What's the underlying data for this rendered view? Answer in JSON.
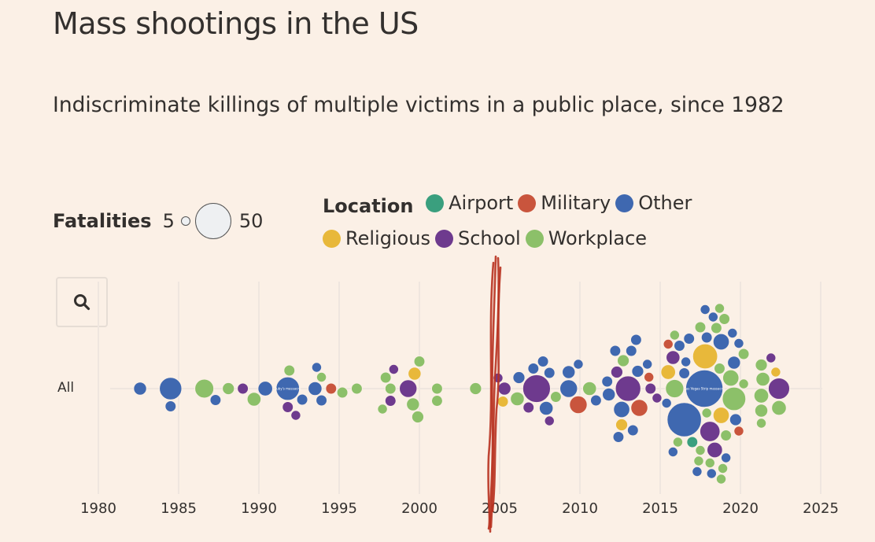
{
  "header": {
    "title": "Mass shootings in the US",
    "subtitle": "Indiscriminate killings of multiple victims in a public place, since 1982"
  },
  "size_legend": {
    "label": "Fatalities",
    "min_label": "5",
    "max_label": "50"
  },
  "location_legend": {
    "label": "Location",
    "items": [
      {
        "name": "Airport",
        "color": "#3a9f7e"
      },
      {
        "name": "Military",
        "color": "#c9553d"
      },
      {
        "name": "Other",
        "color": "#3f68b0"
      },
      {
        "name": "Religious",
        "color": "#e8b83a"
      },
      {
        "name": "School",
        "color": "#6e3a8e"
      },
      {
        "name": "Workplace",
        "color": "#8cc069"
      }
    ]
  },
  "search_button": {
    "icon": "search-icon"
  },
  "chart_data": {
    "type": "scatter",
    "subtype": "beeswarm",
    "row_label": "All",
    "xlim": [
      1980,
      2025
    ],
    "x_ticks": [
      "1980",
      "1985",
      "1990",
      "1995",
      "2000",
      "2005",
      "2010",
      "2015",
      "2020",
      "2025"
    ],
    "grid": "vertical",
    "size_encoding": "fatalities",
    "color_encoding": "location",
    "annotations": {
      "bubble_labels": [
        {
          "year": 1991.8,
          "text": "Luby's massacre"
        },
        {
          "year": 2017.75,
          "text": "Las Vegas Strip massacre"
        }
      ]
    },
    "points": [
      [
        1982.6,
        7,
        "Other"
      ],
      [
        1984.5,
        21,
        "Other"
      ],
      [
        1984.5,
        5,
        "Other"
      ],
      [
        1986.6,
        15,
        "Workplace"
      ],
      [
        1987.3,
        5,
        "Other"
      ],
      [
        1988.1,
        6,
        "Workplace"
      ],
      [
        1989.0,
        5,
        "School"
      ],
      [
        1989.7,
        8,
        "Workplace"
      ],
      [
        1990.4,
        9,
        "Other"
      ],
      [
        1991.8,
        23,
        "Other"
      ],
      [
        1991.8,
        5,
        "School"
      ],
      [
        1991.9,
        5,
        "Workplace"
      ],
      [
        1992.3,
        4,
        "School"
      ],
      [
        1992.7,
        5,
        "Other"
      ],
      [
        1993.5,
        8,
        "Other"
      ],
      [
        1993.9,
        5,
        "Other"
      ],
      [
        1993.9,
        4,
        "Workplace"
      ],
      [
        1993.6,
        4,
        "Other"
      ],
      [
        1994.5,
        5,
        "Military"
      ],
      [
        1995.2,
        5,
        "Workplace"
      ],
      [
        1996.1,
        5,
        "Workplace"
      ],
      [
        1997.7,
        4,
        "Workplace"
      ],
      [
        1998.2,
        5,
        "Workplace"
      ],
      [
        1998.2,
        5,
        "School"
      ],
      [
        1997.9,
        5,
        "Workplace"
      ],
      [
        1998.4,
        4,
        "School"
      ],
      [
        1999.3,
        13,
        "School"
      ],
      [
        1999.6,
        7,
        "Workplace"
      ],
      [
        2000.0,
        5,
        "Workplace"
      ],
      [
        1999.7,
        7,
        "Religious"
      ],
      [
        1999.9,
        6,
        "Workplace"
      ],
      [
        2001.1,
        5,
        "Workplace"
      ],
      [
        2001.1,
        5,
        "Workplace"
      ],
      [
        2003.5,
        6,
        "Workplace"
      ],
      [
        2004.9,
        4,
        "School"
      ],
      [
        2005.3,
        7,
        "School"
      ],
      [
        2005.2,
        5,
        "Religious"
      ],
      [
        2006.1,
        8,
        "Workplace"
      ],
      [
        2006.8,
        5,
        "School"
      ],
      [
        2007.3,
        32,
        "School"
      ],
      [
        2007.9,
        8,
        "Other"
      ],
      [
        2008.1,
        5,
        "Other"
      ],
      [
        2006.2,
        6,
        "Other"
      ],
      [
        2007.1,
        5,
        "Other"
      ],
      [
        2007.7,
        5,
        "Other"
      ],
      [
        2008.1,
        4,
        "School"
      ],
      [
        2008.5,
        5,
        "Workplace"
      ],
      [
        2009.3,
        13,
        "Other"
      ],
      [
        2009.3,
        7,
        "Other"
      ],
      [
        2009.9,
        4,
        "Other"
      ],
      [
        2009.9,
        13,
        "Military"
      ],
      [
        2010.6,
        8,
        "Workplace"
      ],
      [
        2011.0,
        5,
        "Other"
      ],
      [
        2011.8,
        7,
        "Other"
      ],
      [
        2011.7,
        5,
        "Other"
      ],
      [
        2012.2,
        5,
        "Other"
      ],
      [
        2012.3,
        6,
        "School"
      ],
      [
        2012.6,
        11,
        "Other"
      ],
      [
        2013.0,
        27,
        "School"
      ],
      [
        2013.2,
        5,
        "Other"
      ],
      [
        2013.3,
        5,
        "Other"
      ],
      [
        2013.7,
        12,
        "Military"
      ],
      [
        2014.3,
        4,
        "Military"
      ],
      [
        2014.4,
        5,
        "School"
      ],
      [
        2014.8,
        4,
        "School"
      ],
      [
        2012.7,
        6,
        "Workplace"
      ],
      [
        2013.6,
        6,
        "Other"
      ],
      [
        2014.2,
        4,
        "Other"
      ],
      [
        2013.5,
        5,
        "Other"
      ],
      [
        2012.6,
        6,
        "Religious"
      ],
      [
        2012.4,
        5,
        "Other"
      ],
      [
        2015.4,
        4,
        "Other"
      ],
      [
        2016.1,
        4,
        "Workplace"
      ],
      [
        2015.9,
        4,
        "Workplace"
      ],
      [
        2016.6,
        4,
        "Other"
      ],
      [
        2016.5,
        49,
        "Other"
      ],
      [
        2015.5,
        9,
        "Religious"
      ],
      [
        2015.9,
        14,
        "Workplace"
      ],
      [
        2015.8,
        8,
        "School"
      ],
      [
        2016.2,
        5,
        "Other"
      ],
      [
        2015.5,
        4,
        "Military"
      ],
      [
        2015.8,
        4,
        "Other"
      ],
      [
        2016.5,
        5,
        "Other"
      ],
      [
        2016.8,
        5,
        "Other"
      ],
      [
        2017.0,
        5,
        "Airport"
      ],
      [
        2017.75,
        58,
        "Other"
      ],
      [
        2017.8,
        26,
        "Religious"
      ],
      [
        2018.1,
        17,
        "School"
      ],
      [
        2018.4,
        10,
        "School"
      ],
      [
        2018.8,
        11,
        "Religious"
      ],
      [
        2019.6,
        23,
        "Workplace"
      ],
      [
        2019.7,
        6,
        "Other"
      ],
      [
        2019.1,
        4,
        "Other"
      ],
      [
        2019.5,
        4,
        "Other"
      ],
      [
        2019.9,
        4,
        "Military"
      ],
      [
        2020.2,
        5,
        "Workplace"
      ],
      [
        2019.4,
        11,
        "Workplace"
      ],
      [
        2020.2,
        4,
        "Workplace"
      ],
      [
        2019.6,
        7,
        "Other"
      ],
      [
        2019.9,
        4,
        "Other"
      ],
      [
        2018.8,
        11,
        "Other"
      ],
      [
        2018.9,
        4,
        "Workplace"
      ],
      [
        2017.9,
        5,
        "Other"
      ],
      [
        2018.3,
        4,
        "Other"
      ],
      [
        2017.5,
        4,
        "Workplace"
      ],
      [
        2019.1,
        5,
        "Workplace"
      ],
      [
        2017.4,
        4,
        "Workplace"
      ],
      [
        2018.1,
        4,
        "Workplace"
      ],
      [
        2017.8,
        4,
        "Other"
      ],
      [
        2017.3,
        4,
        "Other"
      ],
      [
        2018.5,
        5,
        "Workplace"
      ],
      [
        2019.0,
        5,
        "Workplace"
      ],
      [
        2018.7,
        4,
        "Workplace"
      ],
      [
        2017.5,
        5,
        "Workplace"
      ],
      [
        2018.7,
        5,
        "Workplace"
      ],
      [
        2017.9,
        4,
        "Workplace"
      ],
      [
        2018.2,
        4,
        "Other"
      ],
      [
        2018.8,
        4,
        "Workplace"
      ],
      [
        2021.3,
        4,
        "Workplace"
      ],
      [
        2021.9,
        4,
        "School"
      ],
      [
        2021.3,
        6,
        "Workplace"
      ],
      [
        2022.4,
        9,
        "Workplace"
      ],
      [
        2021.3,
        9,
        "Workplace"
      ],
      [
        2022.4,
        19,
        "School"
      ],
      [
        2021.4,
        8,
        "Workplace"
      ],
      [
        2022.2,
        4,
        "Religious"
      ],
      [
        2021.3,
        7,
        "Workplace"
      ]
    ]
  }
}
